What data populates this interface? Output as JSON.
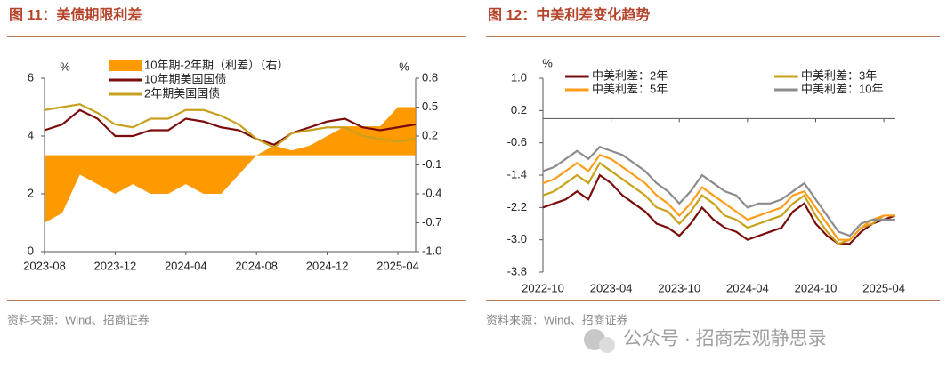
{
  "chart_data": [
    {
      "type": "line",
      "title": "图 11：美债期限利差",
      "source": "资料来源：Wind、招商证券",
      "ylabel": "%",
      "y2label": "%",
      "x": [
        "2023-08",
        "2023-09",
        "2023-10",
        "2023-11",
        "2023-12",
        "2024-01",
        "2024-02",
        "2024-03",
        "2024-04",
        "2024-05",
        "2024-06",
        "2024-07",
        "2024-08",
        "2024-09",
        "2024-10",
        "2024-11",
        "2024-12",
        "2025-01",
        "2025-02",
        "2025-03",
        "2025-04",
        "2025-05"
      ],
      "xticks": [
        "2023-08",
        "2023-12",
        "2024-04",
        "2024-08",
        "2024-12",
        "2025-04"
      ],
      "ylim": [
        0,
        6
      ],
      "yticks": [
        0,
        2,
        4,
        6
      ],
      "y2lim": [
        -1,
        0.8
      ],
      "y2ticks": [
        {
          "value": -1,
          "label": "-1.0"
        },
        -0.7,
        -0.4,
        -0.1,
        0.2,
        0.5,
        0.8
      ],
      "series": [
        {
          "name": "10年期-2年期（利差）（右）",
          "type": "area",
          "axis": "y2",
          "color": "#ff9900",
          "values": [
            -0.7,
            -0.6,
            -0.2,
            -0.3,
            -0.4,
            -0.3,
            -0.4,
            -0.4,
            -0.3,
            -0.4,
            -0.4,
            -0.2,
            0.0,
            0.1,
            0.05,
            0.1,
            0.2,
            0.3,
            0.3,
            0.3,
            0.5,
            0.5
          ]
        },
        {
          "name": "10年期美国国债",
          "color": "#7b0c0c",
          "values": [
            4.2,
            4.4,
            4.9,
            4.6,
            4.0,
            4.0,
            4.2,
            4.2,
            4.6,
            4.5,
            4.3,
            4.2,
            3.9,
            3.7,
            4.1,
            4.3,
            4.5,
            4.6,
            4.3,
            4.2,
            4.3,
            4.4
          ]
        },
        {
          "name": "2年期美国国债",
          "color": "#c8a020",
          "values": [
            4.9,
            5.0,
            5.1,
            4.8,
            4.4,
            4.3,
            4.6,
            4.6,
            4.9,
            4.9,
            4.7,
            4.4,
            3.9,
            3.6,
            4.1,
            4.2,
            4.3,
            4.3,
            4.0,
            3.9,
            3.8,
            3.9
          ]
        }
      ]
    },
    {
      "type": "line",
      "title": "图 12：中美利差变化趋势",
      "source": "资料来源：Wind、招商证券",
      "ylabel": "%",
      "x": [
        "2022-10",
        "2022-11",
        "2022-12",
        "2023-01",
        "2023-02",
        "2023-03",
        "2023-04",
        "2023-05",
        "2023-06",
        "2023-07",
        "2023-08",
        "2023-09",
        "2023-10",
        "2023-11",
        "2023-12",
        "2024-01",
        "2024-02",
        "2024-03",
        "2024-04",
        "2024-05",
        "2024-06",
        "2024-07",
        "2024-08",
        "2024-09",
        "2024-10",
        "2024-11",
        "2024-12",
        "2025-01",
        "2025-02",
        "2025-03",
        "2025-04",
        "2025-05"
      ],
      "xticks": [
        "2022-10",
        "2023-04",
        "2023-10",
        "2024-04",
        "2024-10",
        "2025-04"
      ],
      "ylim": [
        -3.8,
        1
      ],
      "yticks": [
        -3.8,
        {
          "value": -3,
          "label": "-3.0"
        },
        -2.2,
        -1.4,
        -0.6,
        0.2,
        {
          "value": 1,
          "label": "1.0"
        }
      ],
      "series": [
        {
          "name": "中美利差：2年",
          "color": "#7b0c0c",
          "values": [
            -2.2,
            -2.1,
            -2.0,
            -1.8,
            -2.0,
            -1.4,
            -1.6,
            -1.9,
            -2.1,
            -2.3,
            -2.6,
            -2.7,
            -2.9,
            -2.6,
            -2.2,
            -2.5,
            -2.7,
            -2.8,
            -3.0,
            -2.9,
            -2.8,
            -2.7,
            -2.3,
            -2.1,
            -2.6,
            -2.9,
            -3.1,
            -3.1,
            -2.8,
            -2.6,
            -2.5,
            -2.4
          ]
        },
        {
          "name": "中美利差：3年",
          "color": "#c9a21a",
          "values": [
            -1.9,
            -1.8,
            -1.6,
            -1.4,
            -1.6,
            -1.1,
            -1.3,
            -1.5,
            -1.7,
            -1.9,
            -2.2,
            -2.3,
            -2.6,
            -2.3,
            -1.9,
            -2.1,
            -2.4,
            -2.5,
            -2.7,
            -2.6,
            -2.5,
            -2.4,
            -2.1,
            -1.9,
            -2.4,
            -2.8,
            -3.1,
            -3.0,
            -2.7,
            -2.6,
            -2.4,
            -2.4
          ]
        },
        {
          "name": "中美利差：5年",
          "color": "#ff9c1a",
          "values": [
            -1.6,
            -1.5,
            -1.3,
            -1.1,
            -1.3,
            -0.9,
            -1.0,
            -1.2,
            -1.4,
            -1.6,
            -1.9,
            -2.1,
            -2.4,
            -2.1,
            -1.7,
            -1.9,
            -2.1,
            -2.3,
            -2.5,
            -2.4,
            -2.3,
            -2.2,
            -1.9,
            -1.8,
            -2.2,
            -2.6,
            -3.0,
            -3.0,
            -2.7,
            -2.5,
            -2.4,
            -2.4
          ]
        },
        {
          "name": "中美利差：10年",
          "color": "#8c8c8c",
          "values": [
            -1.3,
            -1.2,
            -1.0,
            -0.8,
            -1.0,
            -0.7,
            -0.8,
            -0.9,
            -1.1,
            -1.3,
            -1.6,
            -1.8,
            -2.1,
            -1.8,
            -1.4,
            -1.6,
            -1.8,
            -1.9,
            -2.2,
            -2.1,
            -2.1,
            -2.0,
            -1.8,
            -1.6,
            -2.0,
            -2.4,
            -2.8,
            -2.9,
            -2.6,
            -2.5,
            -2.5,
            -2.5
          ]
        }
      ]
    }
  ],
  "watermark": "公众号 · 招商宏观静思录"
}
